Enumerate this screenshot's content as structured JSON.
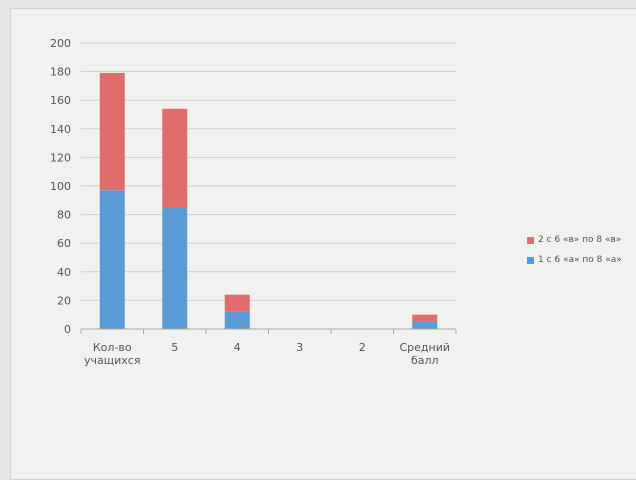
{
  "chart_data": {
    "type": "bar",
    "stacked": true,
    "categories": [
      "Кол-во учащихся",
      "5",
      "4",
      "3",
      "2",
      "Средний балл"
    ],
    "category_lines": [
      [
        "Кол-во",
        "учащихся"
      ],
      [
        "5"
      ],
      [
        "4"
      ],
      [
        "3"
      ],
      [
        "2"
      ],
      [
        "Средний",
        "балл"
      ]
    ],
    "series": [
      {
        "name": "1 с 6 «а» по 8 «а»",
        "color": "#5b9bd5",
        "values": [
          97,
          85,
          12,
          0,
          0,
          5
        ]
      },
      {
        "name": "2 с 6 «в»  по 8 «в»",
        "color": "#e06c6c",
        "values": [
          82,
          69,
          12,
          0,
          0,
          5
        ]
      }
    ],
    "ylim": [
      0,
      200
    ],
    "yticks": [
      0,
      20,
      40,
      60,
      80,
      100,
      120,
      140,
      160,
      180,
      200
    ],
    "grid": true,
    "legend_position": "right",
    "legend_order": [
      1,
      0
    ]
  }
}
